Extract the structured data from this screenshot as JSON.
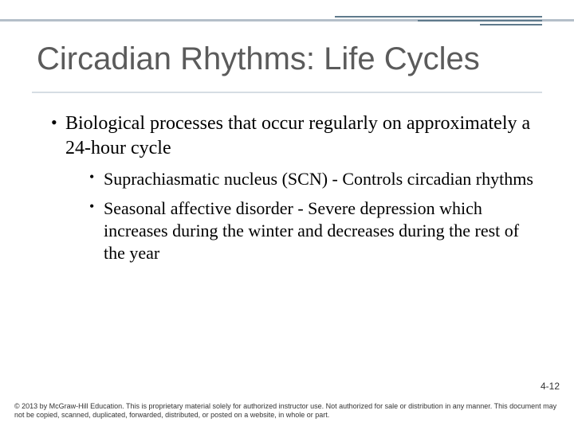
{
  "title": "Circadian Rhythms: Life Cycles",
  "bullets": {
    "main": "Biological processes that occur regularly on approximately a 24-hour cycle",
    "sub1": "Suprachiasmatic nucleus (SCN) - Controls circadian rhythms",
    "sub2": "Seasonal affective disorder - Severe depression which increases during the winter and decreases during the rest of the year"
  },
  "page_number": "4-12",
  "copyright": "© 2013 by McGraw-Hill Education.  This is proprietary material solely for authorized instructor use. Not authorized for sale or distribution in any manner. This document may not be copied, scanned, duplicated, forwarded, distributed, or posted on a website, in whole or part.",
  "colors": {
    "title_text": "#5b5b5b",
    "rule_light": "#d6dde3",
    "rule_mid": "#b4bfc9",
    "rule_accent": "#5f7a8c",
    "body_text": "#000000",
    "background": "#ffffff"
  },
  "typography": {
    "title_font": "Trebuchet MS",
    "title_size_pt": 30,
    "body_font": "Georgia",
    "b1_size_pt": 18,
    "b2_size_pt": 17,
    "footer_size_pt": 7
  }
}
